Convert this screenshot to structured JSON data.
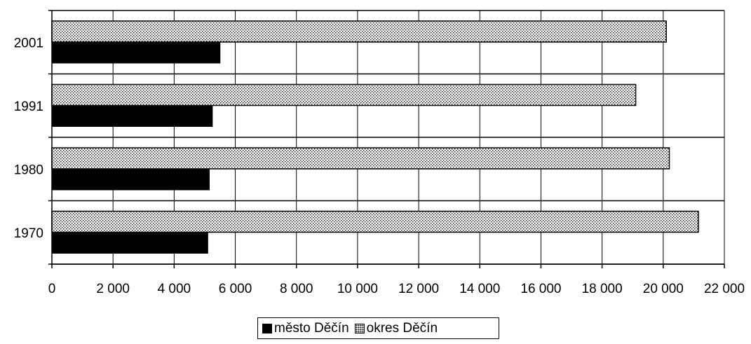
{
  "chart_data": {
    "type": "bar",
    "orientation": "horizontal",
    "categories": [
      "1970",
      "1980",
      "1991",
      "2001"
    ],
    "series": [
      {
        "name": "město Děčín",
        "values": [
          5100,
          5150,
          5250,
          5500
        ],
        "color": "#000000",
        "pattern": "solid"
      },
      {
        "name": "okres Děčín",
        "values": [
          21150,
          20200,
          19100,
          20100
        ],
        "color": "#000000",
        "pattern": "dotted"
      }
    ],
    "xlim": [
      0,
      22000
    ],
    "xticks": [
      0,
      2000,
      4000,
      6000,
      8000,
      10000,
      12000,
      14000,
      16000,
      18000,
      20000,
      22000
    ],
    "xtick_labels": [
      "0",
      "2 000",
      "4 000",
      "6 000",
      "8 000",
      "10 000",
      "12 000",
      "14 000",
      "16 000",
      "18 000",
      "20 000",
      "22 000"
    ],
    "grid": "vertical",
    "legend_position": "bottom",
    "title": "",
    "xlabel": "",
    "ylabel": ""
  }
}
